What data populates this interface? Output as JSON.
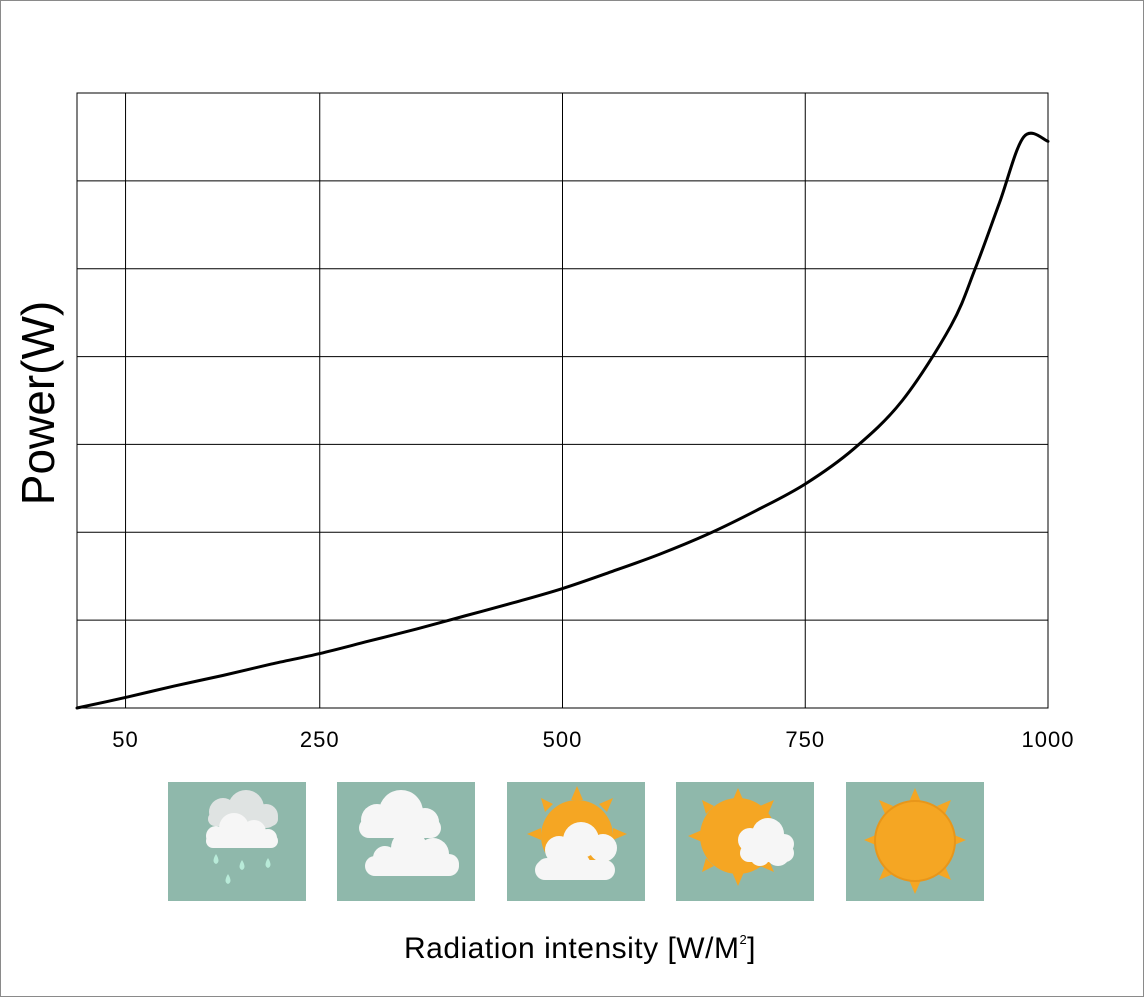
{
  "chart_data": {
    "type": "line",
    "title": "",
    "ylabel": "Power(W)",
    "xlabel": "Radiation intensity [W/M",
    "xlabel_superscript": "2",
    "xlabel_suffix": "]",
    "x_tick_labels": [
      "50",
      "250",
      "500",
      "750",
      "1000"
    ],
    "x_ticks": [
      50,
      250,
      500,
      750,
      1000
    ],
    "xlim": [
      0,
      1000
    ],
    "ylim": [
      0,
      7
    ],
    "y_tick_labels": [],
    "grid": true,
    "legend": "none",
    "series": [
      {
        "x": [
          0,
          50,
          100,
          150,
          200,
          250,
          300,
          350,
          400,
          450,
          500,
          550,
          600,
          650,
          700,
          750,
          800,
          850,
          900,
          925,
          950,
          975,
          1000
        ],
        "values": [
          0,
          0.12,
          0.25,
          0.37,
          0.5,
          0.62,
          0.76,
          0.9,
          1.05,
          1.2,
          1.36,
          1.55,
          1.75,
          1.98,
          2.25,
          2.55,
          2.95,
          3.5,
          4.35,
          5.0,
          5.75,
          6.5,
          6.45
        ]
      }
    ]
  },
  "weather_icons": [
    "rain-cloud-icon",
    "cloudy-icon",
    "partly-cloudy-icon",
    "mostly-sunny-icon",
    "sunny-icon"
  ],
  "colors": {
    "icon_background": "#8fb8ab",
    "cloud": "#f4f4f4",
    "sun": "#f5a623",
    "raindrop": "#b8ead8"
  }
}
